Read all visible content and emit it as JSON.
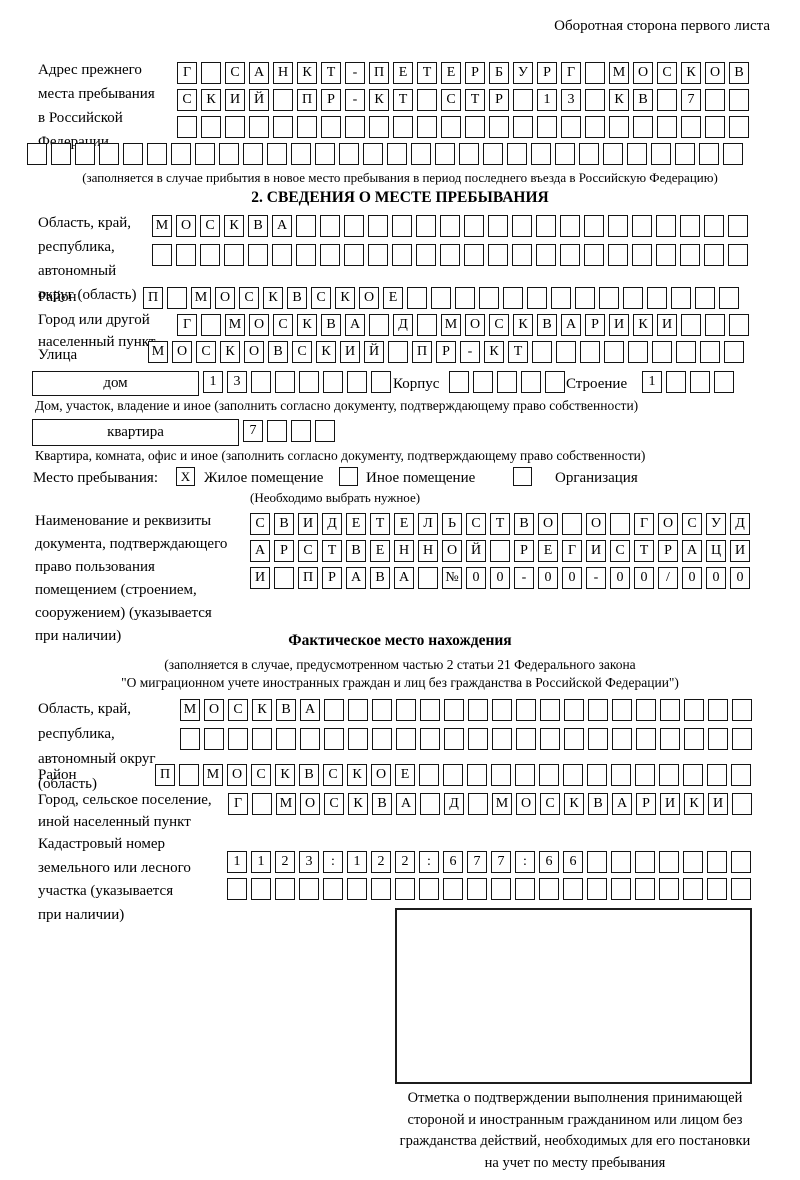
{
  "header": {
    "back_side_note": "Оборотная сторона первого листа"
  },
  "section1": {
    "addr_prev_lines": [
      "Адрес прежнего",
      "места пребывания",
      "в Российской",
      "Федерации"
    ],
    "fill_note": "(заполняется в случае прибытия в новое место пребывания в период последнего въезда в Российскую Федерацию)"
  },
  "section2": {
    "title": "2. СВЕДЕНИЯ О МЕСТЕ ПРЕБЫВАНИЯ",
    "oblast_lines": [
      "Область, край,",
      "республика,",
      "автономный",
      "округ (область)"
    ],
    "raion_label": "Район",
    "gorod_lines": [
      "Город или другой",
      "населенный пункт"
    ],
    "ulitsa_label": "Улица",
    "dom_type": "дом",
    "korpus_label": "Корпус",
    "stroenie_label": "Строение",
    "dom_note": "Дом, участок, владение и иное (заполнить согласно документу, подтверждающему право собственности)",
    "kvartira_type": "квартира",
    "kvartira_note": "Квартира, комната, офис и иное (заполнить согласно документу, подтверждающему право собственности)",
    "mesto_label": "Место пребывания:",
    "zhiloe_label": "Жилое помещение",
    "inoe_label": "Иное помещение",
    "org_label": "Организация",
    "choose_note": "(Необходимо выбрать нужное)",
    "doc_lines": [
      "Наименование и реквизиты",
      "документа, подтверждающего",
      "право пользования",
      "помещением (строением,",
      "сооружением) (указывается",
      "при наличии)"
    ]
  },
  "section3": {
    "title": "Фактическое место нахождения",
    "note1": "(заполняется в случае, предусмотренном частью 2 статьи 21 Федерального закона",
    "note2": "\"О миграционном учете иностранных граждан и лиц без гражданства в Российской Федерации\")",
    "oblast_lines": [
      "Область, край,",
      "республика,",
      "автономный округ",
      "(область)"
    ],
    "raion_label": "Район",
    "gorod_lines": [
      "Город, сельское поселение,",
      "иной населенный пункт"
    ],
    "kadastr_lines": [
      "Кадастровый номер",
      "земельного или лесного",
      "участка (указывается",
      "при наличии)"
    ],
    "stamp_caption_lines": [
      "Отметка о подтверждении выполнения принимающей",
      "стороной и иностранным гражданином или лицом без",
      "гражданства действий, необходимых для его постановки",
      "на учет по месту пребывания"
    ]
  },
  "checkboxes": {
    "zhiloe": "X",
    "inoe": "",
    "org": ""
  },
  "grids": {
    "addr_prev_r1": {
      "count": 24,
      "text": "Г САНКТ-ПЕТЕРБУРГ МОСКОВ"
    },
    "addr_prev_r2": {
      "count": 24,
      "text": "СКИЙ ПР-КТ СТР 13 КВ 7"
    },
    "addr_prev_r3": {
      "count": 24,
      "text": ""
    },
    "addr_prev_r4": {
      "count": 30,
      "text": ""
    },
    "oblast2_r1": {
      "count": 25,
      "text": "МОСКВА"
    },
    "oblast2_r2": {
      "count": 25,
      "text": ""
    },
    "raion2": {
      "count": 25,
      "text": "П МОСКВСКОЕ"
    },
    "gorod2": {
      "count": 24,
      "text": "Г МОСКВА Д МОСКВАРИКИ"
    },
    "ulitsa": {
      "count": 25,
      "text": "МОСКОВСКИЙ ПР-КТ"
    },
    "dom_num": {
      "count": 8,
      "text": "13"
    },
    "korpus": {
      "count": 5,
      "text": ""
    },
    "stroenie": {
      "count": 4,
      "text": "1"
    },
    "kvartira_num": {
      "count": 4,
      "text": "7"
    },
    "doc_r1": {
      "count": 21,
      "text": "СВИДЕТЕЛЬСТВО О ГОСУД"
    },
    "doc_r2": {
      "count": 21,
      "text": "АРСТВЕННОЙ РЕГИСТРАЦИ"
    },
    "doc_r3": {
      "count": 21,
      "text": "И ПРАВА №00-00-00/000"
    },
    "oblast3_r1": {
      "count": 24,
      "text": "МОСКВА"
    },
    "oblast3_r2": {
      "count": 24,
      "text": ""
    },
    "raion3": {
      "count": 25,
      "text": "П МОСКВСКОЕ"
    },
    "gorod3": {
      "count": 22,
      "text": "Г МОСКВА Д МОСКВАРИКИ"
    },
    "kadastr_r1": {
      "count": 22,
      "text": "1123:122:677:66"
    },
    "kadastr_r2": {
      "count": 22,
      "text": ""
    }
  }
}
